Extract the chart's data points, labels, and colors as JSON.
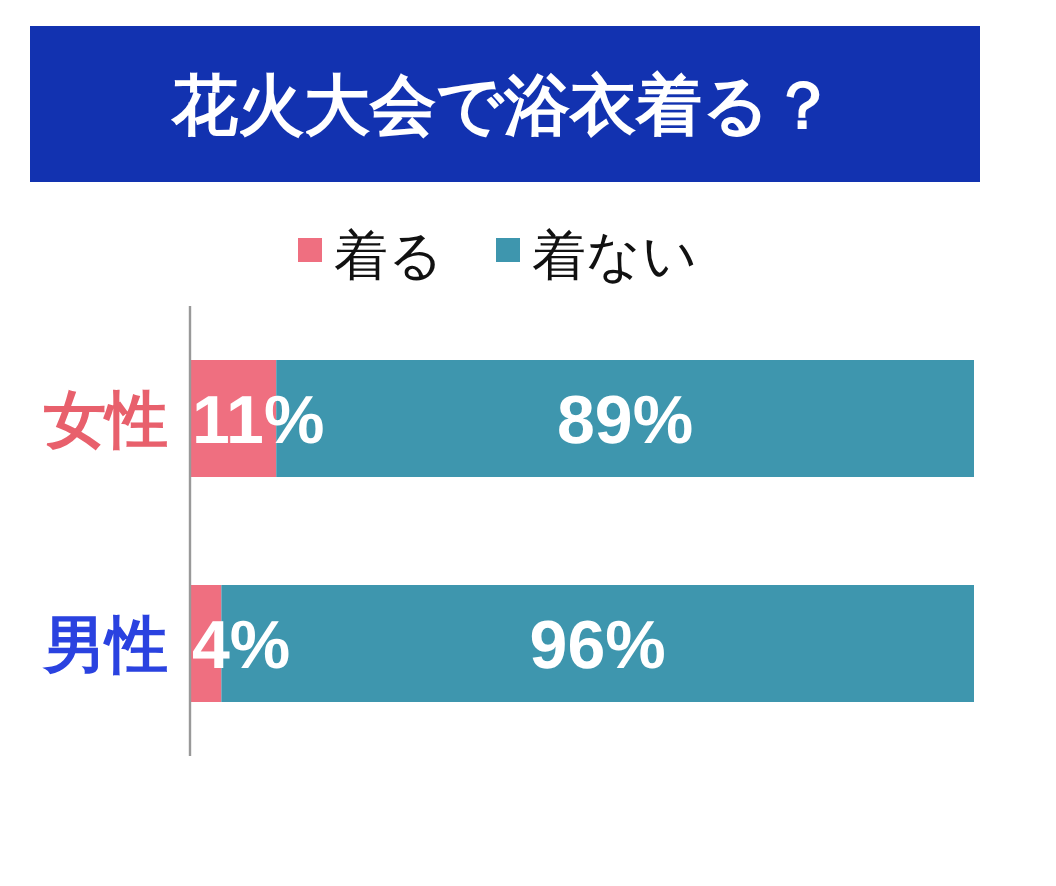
{
  "chart_data": {
    "type": "bar",
    "orientation": "horizontal",
    "stacked": true,
    "title": "花火大会で浴衣着る？",
    "categories": [
      "女性",
      "男性"
    ],
    "series": [
      {
        "name": "着る",
        "color": "#ef6f80",
        "values": [
          11,
          4
        ],
        "value_labels": [
          "11%",
          "4%"
        ]
      },
      {
        "name": "着ない",
        "color": "#3e96ae",
        "values": [
          89,
          96
        ],
        "value_labels": [
          "89%",
          "96%"
        ]
      }
    ],
    "legend": "top",
    "tick_labels": "y"
  }
}
